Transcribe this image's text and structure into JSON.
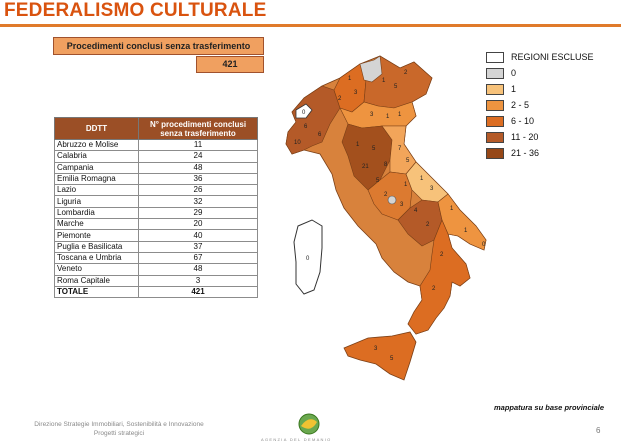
{
  "header": {
    "title": "FEDERALISMO CULTURALE"
  },
  "summary": {
    "banner": "Procedimenti conclusi senza trasferimento",
    "total": "421"
  },
  "table": {
    "col1": "DDTT",
    "col2": "N° procedimenti conclusi senza trasferimento",
    "rows": [
      {
        "region": "Abruzzo e Molise",
        "value": "11"
      },
      {
        "region": "Calabria",
        "value": "24"
      },
      {
        "region": "Campania",
        "value": "48"
      },
      {
        "region": "Emilia Romagna",
        "value": "36"
      },
      {
        "region": "Lazio",
        "value": "26"
      },
      {
        "region": "Liguria",
        "value": "32"
      },
      {
        "region": "Lombardia",
        "value": "29"
      },
      {
        "region": "Marche",
        "value": "20"
      },
      {
        "region": "Piemonte",
        "value": "40"
      },
      {
        "region": "Puglia e Basilicata",
        "value": "37"
      },
      {
        "region": "Toscana e Umbria",
        "value": "67"
      },
      {
        "region": "Veneto",
        "value": "48"
      },
      {
        "region": "Roma Capitale",
        "value": "3"
      }
    ],
    "total_label": "TOTALE",
    "total_value": "421"
  },
  "legend": [
    {
      "label": "REGIONI ESCLUSE",
      "color": "#ffffff"
    },
    {
      "label": "0",
      "color": "#d4d4d4"
    },
    {
      "label": "1",
      "color": "#f7c27a"
    },
    {
      "label": "2 - 5",
      "color": "#ee9440"
    },
    {
      "label": "6 - 10",
      "color": "#dc6d22"
    },
    {
      "label": "11 - 20",
      "color": "#b45a28"
    },
    {
      "label": "21 - 36",
      "color": "#964717"
    }
  ],
  "map": {
    "note": "mappatura su base provinciale",
    "labels": [
      "6",
      "0",
      "2",
      "1",
      "3",
      "10",
      "6",
      "1",
      "5",
      "2",
      "3",
      "1",
      "1",
      "1",
      "5",
      "8",
      "21",
      "5",
      "7",
      "5",
      "1",
      "3",
      "1",
      "2",
      "3",
      "4",
      "2",
      "1",
      "1",
      "0",
      "2",
      "2",
      "3",
      "5",
      "0"
    ]
  },
  "footer": {
    "line1": "Direzione Strategie Immobiliari, Sostenibilità e Innovazione",
    "line2": "Progetti strategici",
    "brand": "AGENZIA DEL DEMANIO",
    "page": "6"
  }
}
